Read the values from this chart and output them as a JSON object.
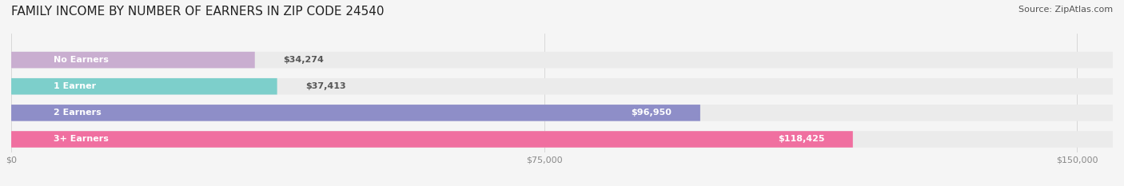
{
  "title": "FAMILY INCOME BY NUMBER OF EARNERS IN ZIP CODE 24540",
  "source": "Source: ZipAtlas.com",
  "categories": [
    "No Earners",
    "1 Earner",
    "2 Earners",
    "3+ Earners"
  ],
  "values": [
    34274,
    37413,
    96950,
    118425
  ],
  "bar_colors": [
    "#c9aed0",
    "#7dcfcb",
    "#8e8ec8",
    "#f06fa0"
  ],
  "bar_bg_color": "#ebebeb",
  "label_values": [
    "$34,274",
    "$37,413",
    "$96,950",
    "$118,425"
  ],
  "x_ticks": [
    0,
    75000,
    150000
  ],
  "x_tick_labels": [
    "$0",
    "$75,000",
    "$150,000"
  ],
  "xlim": [
    0,
    155000
  ],
  "title_fontsize": 11,
  "source_fontsize": 8,
  "label_fontsize": 8,
  "tick_fontsize": 8,
  "cat_fontsize": 8,
  "bg_color": "#f5f5f5",
  "bar_bg_alpha": 1.0
}
